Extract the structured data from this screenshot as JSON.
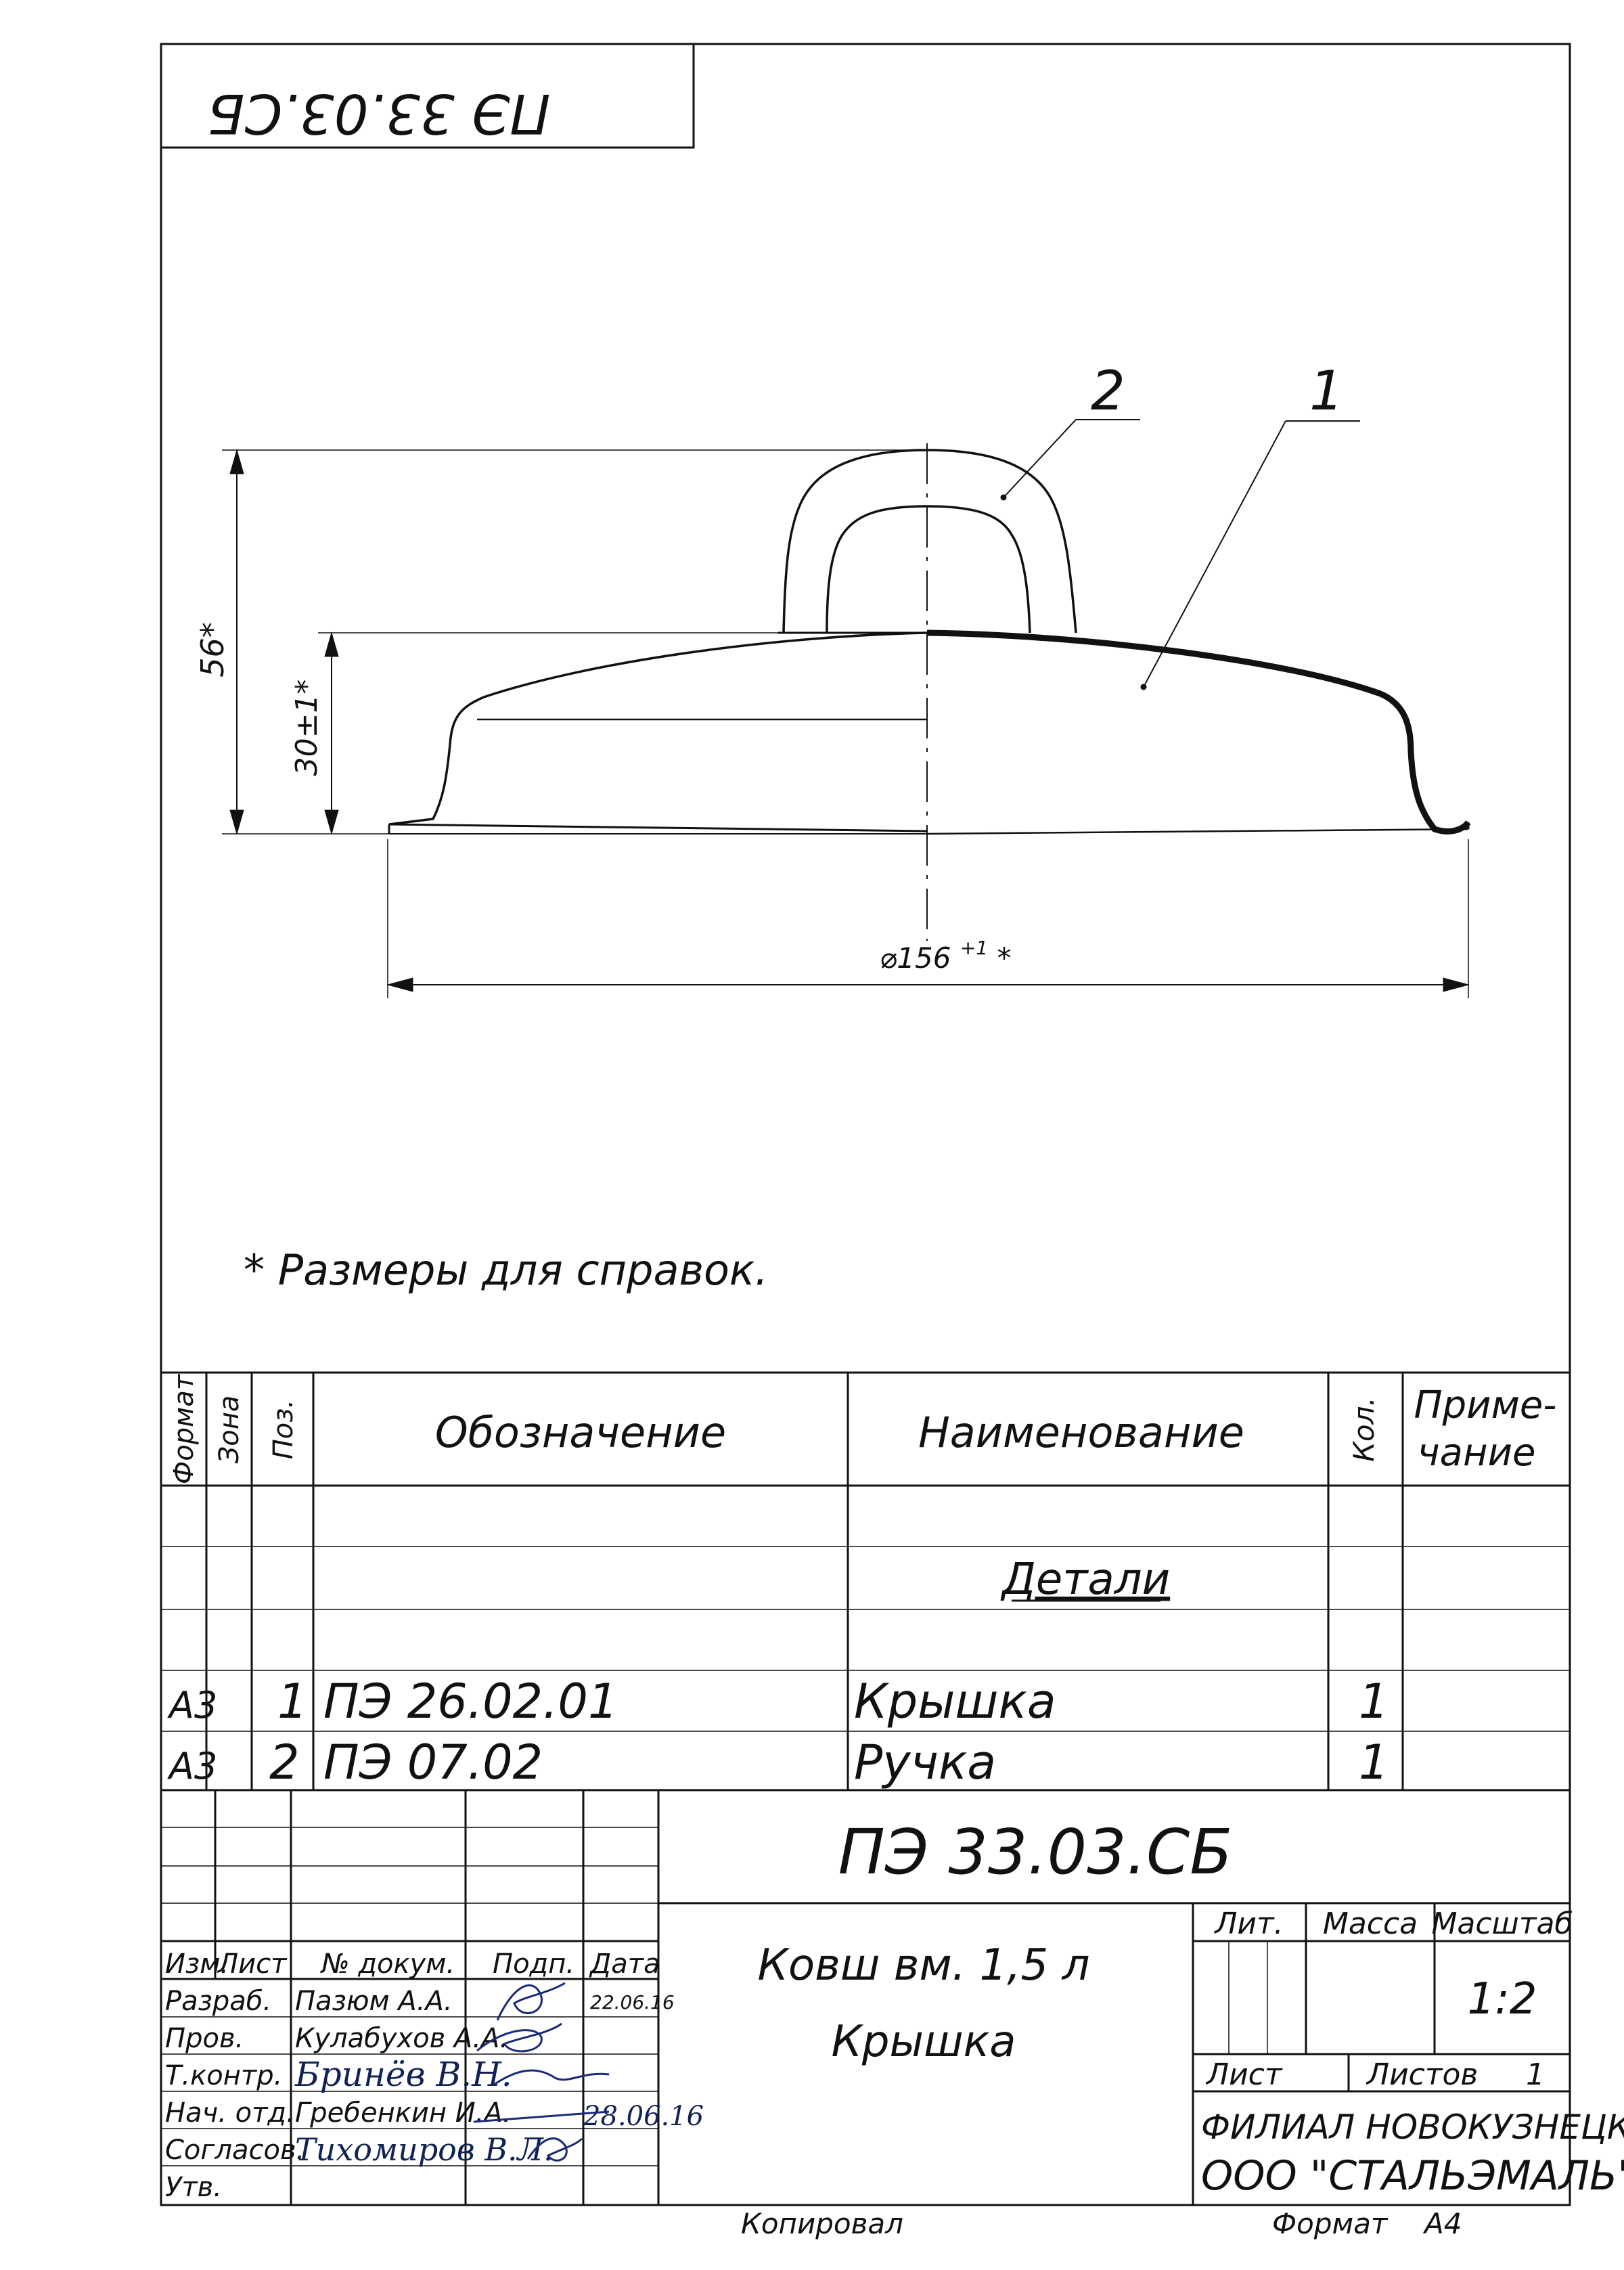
{
  "stamp_top": "ПЭ 33.03.СБ",
  "note": "* Размеры для справок.",
  "drawing": {
    "callout_1": "1",
    "callout_2": "2",
    "dim_height_total": "56*",
    "dim_height_body": "30±1*",
    "dim_diameter_main": "⌀156",
    "dim_diameter_tol": "+1",
    "dim_diameter_star": "*"
  },
  "spec_header": {
    "format": "Формат",
    "zone": "Зона",
    "pos": "Поз.",
    "designation": "Обозначение",
    "name": "Наименование",
    "qty": "Кол.",
    "note_line1": "Приме-",
    "note_line2": "чание"
  },
  "section_title": "Детали",
  "spec_rows": [
    {
      "format": "А3",
      "pos": "1",
      "designation": "ПЭ 26.02.01",
      "name": "Крышка",
      "qty": "1"
    },
    {
      "format": "А3",
      "pos": "2",
      "designation": "ПЭ 07.02",
      "name": "Ручка",
      "qty": "1"
    }
  ],
  "title_block": {
    "doc_number": "ПЭ 33.03.СБ",
    "product_line1": "Ковш вм. 1,5 л",
    "product_line2": "Крышка",
    "lit": "Лит.",
    "mass": "Масса",
    "scale": "Масштаб",
    "scale_value": "1:2",
    "sheet": "Лист",
    "sheets": "Листов",
    "sheets_value": "1",
    "org_line1": "ФИЛИАЛ НОВОКУЗНЕЦКИЙ",
    "org_line2": "ООО \"СТАЛЬЭМАЛЬ\"",
    "col_izm": "Изм.",
    "col_list": "Лист",
    "col_doc": "№ докум.",
    "col_sign": "Подп.",
    "col_date": "Дата",
    "roles": [
      {
        "role": "Разраб.",
        "name": "Пазюм А.А.",
        "date": "22.06.16"
      },
      {
        "role": "Пров.",
        "name": "Кулабухов А.А.",
        "date": ""
      },
      {
        "role": "Т.контр.",
        "name": "Бринёв В.Н.",
        "date": ""
      },
      {
        "role": "Нач. отд.",
        "name": "Гребенкин И.А.",
        "date": "28.06.16"
      },
      {
        "role": "Согласов.",
        "name": "Тихомиров В.Л.",
        "date": ""
      },
      {
        "role": "Утв.",
        "name": "",
        "date": ""
      }
    ]
  },
  "footer": {
    "copied": "Копировал",
    "format_label": "Формат",
    "format_value": "А4"
  }
}
